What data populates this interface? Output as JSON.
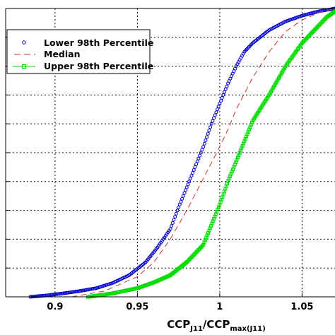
{
  "chart_data": {
    "type": "line",
    "title": "",
    "xlabel_main": "CCP",
    "xlabel_sub": "J11",
    "xlabel_mid": "/CCP",
    "xlabel_sub2": "max(J11)",
    "ylabel": "",
    "xlim": [
      0.87,
      1.07
    ],
    "ylim": [
      0,
      1
    ],
    "xticks": [
      0.9,
      0.95,
      1,
      1.05
    ],
    "xtick_labels": [
      "0.9",
      "0.95",
      "1",
      "1.05"
    ],
    "yticks": [
      0,
      0.1,
      0.2,
      0.3,
      0.4,
      0.5,
      0.6,
      0.7,
      0.8,
      0.9,
      1.0
    ],
    "grid": true,
    "legend_position": "top-left",
    "series": [
      {
        "name": "Lower 98th Percentile",
        "style": "circles",
        "color": "#0000cc",
        "points": [
          [
            0.885,
            0.0
          ],
          [
            0.895,
            0.005
          ],
          [
            0.905,
            0.012
          ],
          [
            0.915,
            0.02
          ],
          [
            0.925,
            0.03
          ],
          [
            0.935,
            0.048
          ],
          [
            0.945,
            0.075
          ],
          [
            0.955,
            0.12
          ],
          [
            0.962,
            0.17
          ],
          [
            0.97,
            0.235
          ],
          [
            0.975,
            0.31
          ],
          [
            0.98,
            0.38
          ],
          [
            0.985,
            0.45
          ],
          [
            0.99,
            0.52
          ],
          [
            0.995,
            0.6
          ],
          [
            1.0,
            0.67
          ],
          [
            1.005,
            0.74
          ],
          [
            1.01,
            0.8
          ],
          [
            1.015,
            0.85
          ],
          [
            1.02,
            0.88
          ],
          [
            1.03,
            0.925
          ],
          [
            1.04,
            0.955
          ],
          [
            1.05,
            0.975
          ],
          [
            1.06,
            0.99
          ],
          [
            1.07,
            1.0
          ]
        ]
      },
      {
        "name": "Median",
        "style": "dashed",
        "color": "#cc3333",
        "points": [
          [
            0.91,
            0.0
          ],
          [
            0.93,
            0.02
          ],
          [
            0.95,
            0.07
          ],
          [
            0.96,
            0.12
          ],
          [
            0.97,
            0.2
          ],
          [
            0.98,
            0.3
          ],
          [
            0.99,
            0.41
          ],
          [
            1.0,
            0.52
          ],
          [
            1.005,
            0.58
          ],
          [
            1.01,
            0.65
          ],
          [
            1.02,
            0.76
          ],
          [
            1.03,
            0.85
          ],
          [
            1.04,
            0.92
          ],
          [
            1.05,
            0.96
          ],
          [
            1.06,
            0.985
          ],
          [
            1.07,
            1.0
          ]
        ]
      },
      {
        "name": "Upper 98th Percentile",
        "style": "squares",
        "color": "#00dd00",
        "points": [
          [
            0.92,
            0.0
          ],
          [
            0.935,
            0.012
          ],
          [
            0.95,
            0.03
          ],
          [
            0.96,
            0.05
          ],
          [
            0.97,
            0.075
          ],
          [
            0.98,
            0.12
          ],
          [
            0.99,
            0.18
          ],
          [
            0.995,
            0.25
          ],
          [
            1.0,
            0.32
          ],
          [
            1.005,
            0.4
          ],
          [
            1.01,
            0.47
          ],
          [
            1.015,
            0.54
          ],
          [
            1.02,
            0.61
          ],
          [
            1.03,
            0.7
          ],
          [
            1.04,
            0.8
          ],
          [
            1.05,
            0.88
          ],
          [
            1.06,
            0.94
          ],
          [
            1.065,
            0.97
          ],
          [
            1.07,
            0.99
          ]
        ]
      }
    ]
  }
}
